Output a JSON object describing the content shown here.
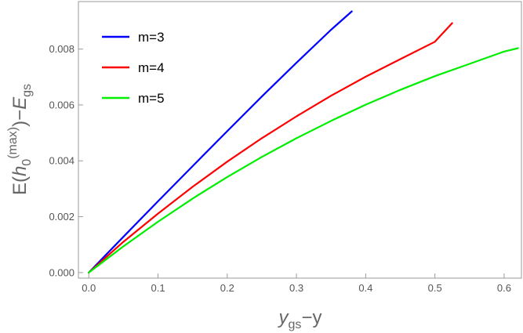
{
  "chart_data": {
    "type": "line",
    "xlabel": {
      "main": "y",
      "sub": "gs",
      "suffix": "−y"
    },
    "ylabel": {
      "prefix": "E(",
      "var": "h",
      "sub": "0",
      "sup": "(max)",
      "mid": ")−",
      "var2": "E",
      "sub2": "gs"
    },
    "xlim": [
      -0.015,
      0.625
    ],
    "ylim": [
      -0.0002,
      0.0097
    ],
    "xticks": [
      {
        "v": 0.0,
        "label": "0.0"
      },
      {
        "v": 0.1,
        "label": "0.1"
      },
      {
        "v": 0.2,
        "label": "0.2"
      },
      {
        "v": 0.3,
        "label": "0.3"
      },
      {
        "v": 0.4,
        "label": "0.4"
      },
      {
        "v": 0.5,
        "label": "0.5"
      },
      {
        "v": 0.6,
        "label": "0.6"
      }
    ],
    "yticks": [
      {
        "v": 0.0,
        "label": "0.000"
      },
      {
        "v": 0.002,
        "label": "0.002"
      },
      {
        "v": 0.004,
        "label": "0.004"
      },
      {
        "v": 0.006,
        "label": "0.006"
      },
      {
        "v": 0.008,
        "label": "0.008"
      }
    ],
    "grid": false,
    "legend_position": "top-left",
    "series": [
      {
        "name": "m=3",
        "color": "#0000ff",
        "x": [
          0.0,
          0.05,
          0.1,
          0.15,
          0.2,
          0.25,
          0.3,
          0.35,
          0.38
        ],
        "y": [
          0.0,
          0.00128,
          0.00255,
          0.00381,
          0.00506,
          0.0063,
          0.00751,
          0.00869,
          0.00935
        ]
      },
      {
        "name": "m=4",
        "color": "#ff0000",
        "x": [
          0.0,
          0.05,
          0.1,
          0.15,
          0.2,
          0.25,
          0.3,
          0.35,
          0.4,
          0.45,
          0.5,
          0.525
        ],
        "y": [
          0.0,
          0.0011,
          0.00211,
          0.00307,
          0.00397,
          0.00481,
          0.00559,
          0.00633,
          0.00701,
          0.00764,
          0.00826,
          0.00893
        ]
      },
      {
        "name": "m=5",
        "color": "#00ee00",
        "x": [
          0.0,
          0.05,
          0.1,
          0.15,
          0.2,
          0.25,
          0.3,
          0.35,
          0.4,
          0.45,
          0.5,
          0.55,
          0.6,
          0.62
        ],
        "y": [
          0.0,
          0.00094,
          0.00182,
          0.00265,
          0.00342,
          0.00414,
          0.00481,
          0.00543,
          0.00601,
          0.00654,
          0.00703,
          0.00747,
          0.00791,
          0.00803
        ]
      }
    ]
  }
}
